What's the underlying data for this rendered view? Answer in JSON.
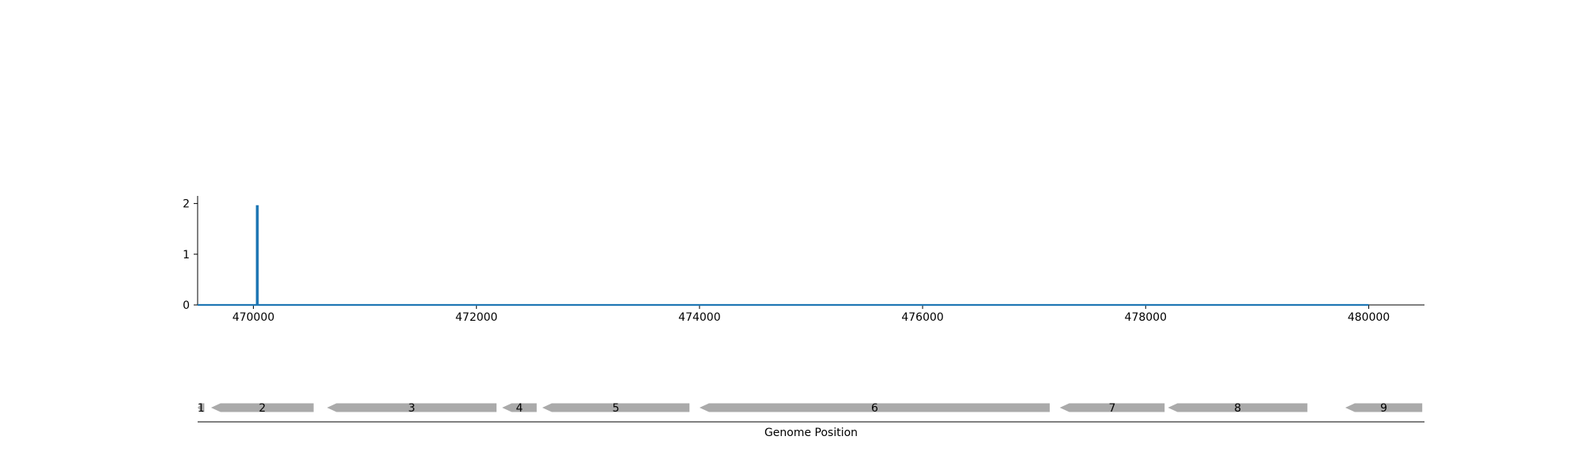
{
  "chart_data": [
    {
      "type": "line",
      "title": "",
      "xlabel": "",
      "ylabel": "",
      "xlim": [
        469500,
        480500
      ],
      "ylim": [
        0,
        2.15
      ],
      "x_ticks": [
        470000,
        472000,
        474000,
        476000,
        478000,
        480000
      ],
      "y_ticks": [
        0,
        1,
        2
      ],
      "grid": false,
      "legend": "none",
      "series": [
        {
          "color": "#1f77b4",
          "x": [
            469500,
            470030,
            470030,
            470040,
            470040,
            480000
          ],
          "y": [
            0,
            0,
            1.95,
            1.95,
            0,
            0
          ]
        }
      ]
    },
    {
      "type": "gene-track",
      "xlabel": "Genome Position",
      "xlim": [
        469500,
        480500
      ],
      "color": "#aaaaaa",
      "genes": [
        {
          "label": "1",
          "start": 469500,
          "end": 469560,
          "strand": "-"
        },
        {
          "label": "2",
          "start": 469620,
          "end": 470540,
          "strand": "-"
        },
        {
          "label": "3",
          "start": 470660,
          "end": 472180,
          "strand": "-"
        },
        {
          "label": "4",
          "start": 472230,
          "end": 472540,
          "strand": "-"
        },
        {
          "label": "5",
          "start": 472590,
          "end": 473910,
          "strand": "-"
        },
        {
          "label": "6",
          "start": 474000,
          "end": 477140,
          "strand": "-"
        },
        {
          "label": "7",
          "start": 477230,
          "end": 478170,
          "strand": "-"
        },
        {
          "label": "8",
          "start": 478200,
          "end": 479450,
          "strand": "-"
        },
        {
          "label": "9",
          "start": 479790,
          "end": 480480,
          "strand": "-"
        }
      ]
    }
  ]
}
